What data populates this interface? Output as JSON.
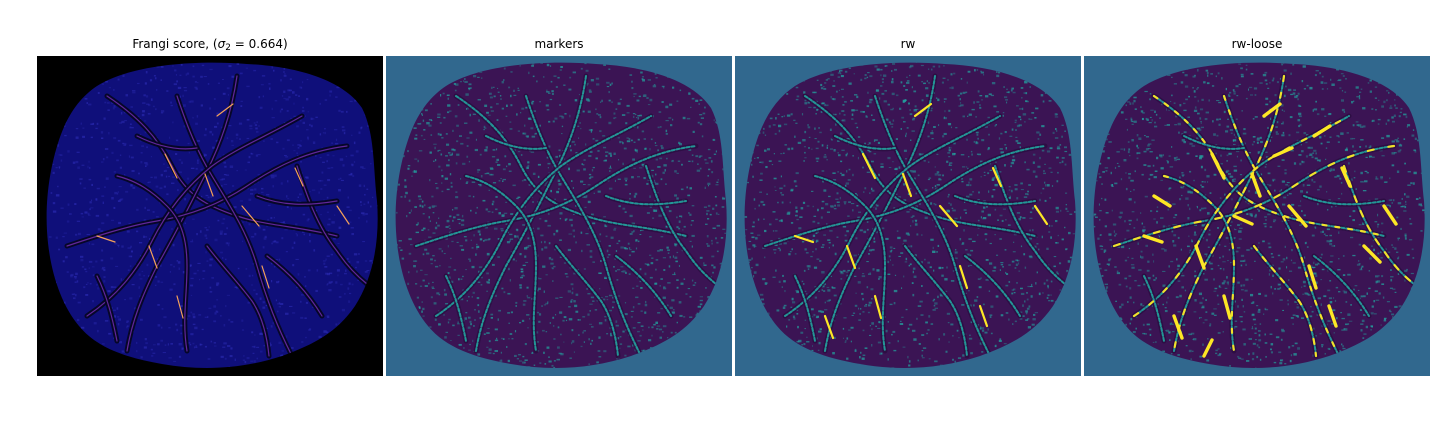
{
  "figure": {
    "panels": [
      {
        "title_pre": "Frangi score, (",
        "title_sigma": "σ",
        "title_sub": "2",
        "title_post": " = 0.664)",
        "kind": "frangi",
        "background": "#000000",
        "tissue_color": "#0f0f7a",
        "vessel_color": "#6b2aa6",
        "highlight_color": "#f5a15a"
      },
      {
        "title": "markers",
        "kind": "markers",
        "background": "#31688e",
        "tissue_color": "#3b1454",
        "vessel_color": "#22a5a0",
        "highlight_color": "#21918c"
      },
      {
        "title": "rw",
        "kind": "rw",
        "background": "#31688e",
        "tissue_color": "#3b1454",
        "vessel_color": "#22a5a0",
        "highlight_color": "#fde725"
      },
      {
        "title": "rw-loose",
        "kind": "rwloose",
        "background": "#31688e",
        "tissue_color": "#3b1454",
        "vessel_color": "#22a5a0",
        "highlight_color": "#fde725"
      }
    ]
  }
}
